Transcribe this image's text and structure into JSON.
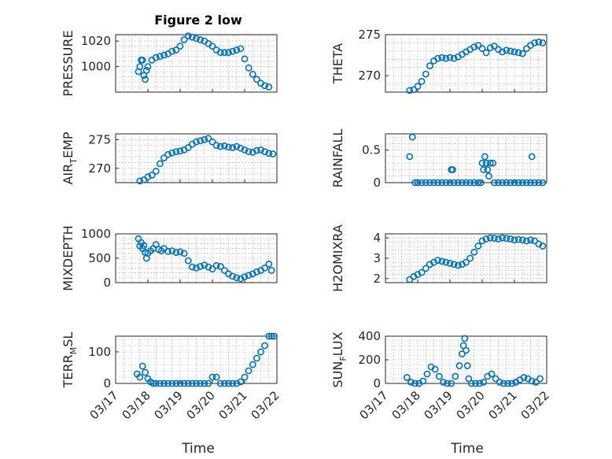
{
  "figure": {
    "title": "Figure 2 low",
    "x_axis_label": "Time"
  },
  "colors": {
    "marker": "#0072BD",
    "axes": "#262626"
  },
  "chart_data": [
    {
      "type": "scatter",
      "id": "pressure",
      "ylabel": "PRESSURE",
      "subscript": "",
      "xlim": [
        "03/17",
        "03/22"
      ],
      "ylim": [
        980,
        1025
      ],
      "yticks": [
        1000,
        1020
      ],
      "grid": true,
      "marker": "circle",
      "show_xticklabels": false,
      "x": [
        "03/17 17:00",
        "03/17 18:00",
        "03/17 19:00",
        "03/17 20:00",
        "03/17 21:00",
        "03/17 22:00",
        "03/17 23:00",
        "03/18 00:00",
        "03/18 03:00",
        "03/18 06:00",
        "03/18 09:00",
        "03/18 12:00",
        "03/18 15:00",
        "03/18 18:00",
        "03/18 21:00",
        "03/19 00:00",
        "03/19 03:00",
        "03/19 06:00",
        "03/19 09:00",
        "03/19 12:00",
        "03/19 15:00",
        "03/19 18:00",
        "03/19 21:00",
        "03/20 00:00",
        "03/20 03:00",
        "03/20 06:00",
        "03/20 09:00",
        "03/20 12:00",
        "03/20 15:00",
        "03/20 18:00",
        "03/20 21:00",
        "03/21 00:00",
        "03/21 03:00",
        "03/21 06:00",
        "03/21 09:00",
        "03/21 12:00",
        "03/21 15:00",
        "03/21 18:00"
      ],
      "y": [
        996,
        1000,
        1005,
        1005,
        993,
        990,
        997,
        1000,
        1005,
        1007,
        1008,
        1009,
        1010,
        1012,
        1013,
        1016,
        1021,
        1024,
        1023,
        1022,
        1021,
        1020,
        1018,
        1016,
        1013,
        1011,
        1011,
        1011,
        1012,
        1013,
        1014,
        1006,
        999,
        994,
        990,
        987,
        985,
        984
      ]
    },
    {
      "type": "scatter",
      "id": "theta",
      "ylabel": "THETA",
      "subscript": "",
      "xlim": [
        "03/17",
        "03/22"
      ],
      "ylim": [
        268,
        275
      ],
      "yticks": [
        270,
        275
      ],
      "grid": true,
      "marker": "circle",
      "show_xticklabels": false,
      "x": [
        "03/17 18:00",
        "03/17 21:00",
        "03/18 00:00",
        "03/18 03:00",
        "03/18 06:00",
        "03/18 09:00",
        "03/18 12:00",
        "03/18 15:00",
        "03/18 18:00",
        "03/18 21:00",
        "03/19 00:00",
        "03/19 03:00",
        "03/19 06:00",
        "03/19 09:00",
        "03/19 12:00",
        "03/19 15:00",
        "03/19 18:00",
        "03/19 21:00",
        "03/20 00:00",
        "03/20 03:00",
        "03/20 06:00",
        "03/20 09:00",
        "03/20 12:00",
        "03/20 15:00",
        "03/20 18:00",
        "03/20 21:00",
        "03/21 00:00",
        "03/21 03:00",
        "03/21 06:00",
        "03/21 09:00",
        "03/21 12:00",
        "03/21 15:00",
        "03/21 18:00",
        "03/21 21:00"
      ],
      "y": [
        268.2,
        268.3,
        268.7,
        269.3,
        270.2,
        271.2,
        271.8,
        272.1,
        272.2,
        272.1,
        272.2,
        272.1,
        272.3,
        272.6,
        272.9,
        273.2,
        273.5,
        273.7,
        273.3,
        272.8,
        273.4,
        273.6,
        273.2,
        272.9,
        273.1,
        273.0,
        272.9,
        272.8,
        272.7,
        273.3,
        273.7,
        274.0,
        274.1,
        274.0
      ]
    },
    {
      "type": "scatter",
      "id": "air-temp",
      "ylabel": "AIR",
      "subscript": "T",
      "ylabel_tail": "EMP",
      "xlim": [
        "03/17",
        "03/22"
      ],
      "ylim": [
        267.5,
        276
      ],
      "yticks": [
        270,
        275
      ],
      "grid": true,
      "marker": "circle",
      "show_xticklabels": false,
      "x": [
        "03/17 18:00",
        "03/17 21:00",
        "03/18 00:00",
        "03/18 03:00",
        "03/18 06:00",
        "03/18 09:00",
        "03/18 12:00",
        "03/18 15:00",
        "03/18 18:00",
        "03/18 21:00",
        "03/19 00:00",
        "03/19 03:00",
        "03/19 06:00",
        "03/19 09:00",
        "03/19 12:00",
        "03/19 15:00",
        "03/19 18:00",
        "03/19 21:00",
        "03/20 00:00",
        "03/20 03:00",
        "03/20 06:00",
        "03/20 09:00",
        "03/20 12:00",
        "03/20 15:00",
        "03/20 18:00",
        "03/20 21:00",
        "03/21 00:00",
        "03/21 03:00",
        "03/21 06:00",
        "03/21 09:00",
        "03/21 12:00",
        "03/21 15:00",
        "03/21 18:00",
        "03/21 21:00"
      ],
      "y": [
        267.8,
        268.0,
        268.5,
        268.8,
        269.5,
        270.8,
        271.8,
        272.4,
        272.7,
        272.9,
        273.0,
        273.2,
        273.6,
        274.2,
        274.6,
        274.8,
        275.0,
        275.2,
        274.6,
        274.0,
        273.8,
        273.9,
        273.7,
        273.6,
        273.8,
        273.5,
        273.2,
        272.9,
        272.8,
        273.1,
        273.2,
        272.9,
        272.6,
        272.5
      ]
    },
    {
      "type": "scatter",
      "id": "rainfall",
      "ylabel": "RAINFALL",
      "subscript": "",
      "xlim": [
        "03/17",
        "03/22"
      ],
      "ylim": [
        0,
        0.75
      ],
      "yticks": [
        0,
        0.5
      ],
      "grid": true,
      "marker": "circle",
      "show_xticklabels": false,
      "x": [
        "03/17 18:00",
        "03/17 20:00",
        "03/17 22:00",
        "03/18 00:00",
        "03/18 03:00",
        "03/18 06:00",
        "03/18 09:00",
        "03/18 12:00",
        "03/18 15:00",
        "03/18 18:00",
        "03/18 21:00",
        "03/19 00:00",
        "03/19 01:00",
        "03/19 02:00",
        "03/19 03:00",
        "03/19 06:00",
        "03/19 09:00",
        "03/19 12:00",
        "03/19 15:00",
        "03/19 18:00",
        "03/19 21:00",
        "03/19 23:00",
        "03/20 00:00",
        "03/20 01:00",
        "03/20 02:00",
        "03/20 03:00",
        "03/20 04:00",
        "03/20 05:00",
        "03/20 06:00",
        "03/20 08:00",
        "03/20 09:00",
        "03/20 12:00",
        "03/20 15:00",
        "03/20 18:00",
        "03/20 21:00",
        "03/21 00:00",
        "03/21 03:00",
        "03/21 06:00",
        "03/21 09:00",
        "03/21 12:00",
        "03/21 13:00",
        "03/21 15:00",
        "03/21 18:00",
        "03/21 21:00"
      ],
      "y": [
        0.4,
        0.7,
        0,
        0,
        0,
        0,
        0,
        0,
        0,
        0,
        0,
        0,
        0.2,
        0.2,
        0,
        0,
        0,
        0,
        0,
        0,
        0,
        0,
        0.3,
        0.2,
        0.4,
        0.3,
        0.2,
        0.1,
        0.3,
        0.3,
        0,
        0,
        0,
        0,
        0,
        0,
        0,
        0,
        0,
        0,
        0.4,
        0,
        0,
        0
      ]
    },
    {
      "type": "scatter",
      "id": "mixdepth",
      "ylabel": "MIXDEPTH",
      "subscript": "",
      "xlim": [
        "03/17",
        "03/22"
      ],
      "ylim": [
        0,
        1000
      ],
      "yticks": [
        0,
        500,
        1000
      ],
      "grid": true,
      "marker": "circle",
      "show_xticklabels": false,
      "x": [
        "03/17 17:00",
        "03/17 18:00",
        "03/17 19:00",
        "03/17 20:00",
        "03/17 21:00",
        "03/17 22:00",
        "03/17 23:00",
        "03/18 00:00",
        "03/18 02:00",
        "03/18 04:00",
        "03/18 06:00",
        "03/18 08:00",
        "03/18 10:00",
        "03/18 12:00",
        "03/18 15:00",
        "03/18 18:00",
        "03/18 21:00",
        "03/19 00:00",
        "03/19 03:00",
        "03/19 06:00",
        "03/19 09:00",
        "03/19 12:00",
        "03/19 15:00",
        "03/19 18:00",
        "03/19 21:00",
        "03/20 00:00",
        "03/20 03:00",
        "03/20 06:00",
        "03/20 09:00",
        "03/20 12:00",
        "03/20 15:00",
        "03/20 18:00",
        "03/20 21:00",
        "03/21 00:00",
        "03/21 03:00",
        "03/21 06:00",
        "03/21 09:00",
        "03/21 12:00",
        "03/21 15:00",
        "03/21 18:00",
        "03/21 20:00"
      ],
      "y": [
        900,
        750,
        820,
        700,
        760,
        620,
        500,
        600,
        650,
        700,
        780,
        680,
        650,
        700,
        640,
        650,
        620,
        630,
        600,
        450,
        320,
        300,
        330,
        360,
        320,
        280,
        350,
        330,
        250,
        180,
        130,
        100,
        80,
        120,
        150,
        180,
        220,
        250,
        300,
        380,
        250
      ]
    },
    {
      "type": "scatter",
      "id": "h2o-mixing-ratio",
      "ylabel": "H2OMIXRA",
      "subscript": "",
      "xlim": [
        "03/17",
        "03/22"
      ],
      "ylim": [
        1.8,
        4.2
      ],
      "yticks": [
        2,
        3,
        4
      ],
      "grid": true,
      "marker": "circle",
      "show_xticklabels": false,
      "x": [
        "03/17 18:00",
        "03/17 21:00",
        "03/18 00:00",
        "03/18 03:00",
        "03/18 06:00",
        "03/18 09:00",
        "03/18 12:00",
        "03/18 15:00",
        "03/18 18:00",
        "03/18 21:00",
        "03/19 00:00",
        "03/19 03:00",
        "03/19 06:00",
        "03/19 09:00",
        "03/19 12:00",
        "03/19 15:00",
        "03/19 18:00",
        "03/19 21:00",
        "03/20 00:00",
        "03/20 03:00",
        "03/20 06:00",
        "03/20 09:00",
        "03/20 12:00",
        "03/20 15:00",
        "03/20 18:00",
        "03/20 21:00",
        "03/21 00:00",
        "03/21 03:00",
        "03/21 06:00",
        "03/21 09:00",
        "03/21 12:00",
        "03/21 15:00",
        "03/21 18:00",
        "03/21 21:00"
      ],
      "y": [
        1.95,
        2.1,
        2.2,
        2.3,
        2.5,
        2.7,
        2.8,
        2.9,
        2.85,
        2.8,
        2.75,
        2.7,
        2.65,
        2.7,
        2.8,
        3.0,
        3.3,
        3.6,
        3.85,
        3.95,
        4.0,
        3.98,
        3.95,
        4.0,
        3.97,
        3.95,
        3.9,
        3.92,
        3.9,
        3.85,
        3.9,
        3.85,
        3.7,
        3.6
      ]
    },
    {
      "type": "scatter",
      "id": "terrain-msl",
      "ylabel": "TERR",
      "subscript": "M",
      "ylabel_tail": "SL",
      "xlim": [
        "03/17",
        "03/22"
      ],
      "ylim": [
        0,
        150
      ],
      "yticks": [
        0,
        100
      ],
      "grid": true,
      "marker": "circle",
      "show_xticklabels": true,
      "xticks": [
        "03/17",
        "03/18",
        "03/19",
        "03/20",
        "03/21",
        "03/22"
      ],
      "x": [
        "03/17 16:00",
        "03/17 18:00",
        "03/17 20:00",
        "03/17 22:00",
        "03/18 00:00",
        "03/18 02:00",
        "03/18 04:00",
        "03/18 06:00",
        "03/18 09:00",
        "03/18 12:00",
        "03/18 15:00",
        "03/18 18:00",
        "03/18 21:00",
        "03/19 00:00",
        "03/19 03:00",
        "03/19 06:00",
        "03/19 09:00",
        "03/19 12:00",
        "03/19 15:00",
        "03/19 18:00",
        "03/19 21:00",
        "03/20 00:00",
        "03/20 03:00",
        "03/20 06:00",
        "03/20 09:00",
        "03/20 12:00",
        "03/20 15:00",
        "03/20 18:00",
        "03/20 21:00",
        "03/21 00:00",
        "03/21 03:00",
        "03/21 06:00",
        "03/21 09:00",
        "03/21 12:00",
        "03/21 15:00",
        "03/21 18:00",
        "03/21 20:00",
        "03/21 22:00"
      ],
      "y": [
        30,
        20,
        55,
        35,
        15,
        5,
        0,
        0,
        0,
        0,
        0,
        0,
        0,
        0,
        0,
        0,
        0,
        0,
        0,
        0,
        0,
        20,
        20,
        0,
        0,
        0,
        0,
        0,
        5,
        20,
        40,
        60,
        80,
        100,
        120,
        150,
        150,
        150
      ]
    },
    {
      "type": "scatter",
      "id": "sun-flux",
      "ylabel": "SUN",
      "subscript": "F",
      "ylabel_tail": "LUX",
      "xlim": [
        "03/17",
        "03/22"
      ],
      "ylim": [
        0,
        400
      ],
      "yticks": [
        0,
        200,
        400
      ],
      "grid": true,
      "marker": "circle",
      "show_xticklabels": true,
      "xticks": [
        "03/17",
        "03/18",
        "03/19",
        "03/20",
        "03/21",
        "03/22"
      ],
      "x": [
        "03/17 16:00",
        "03/17 19:00",
        "03/17 22:00",
        "03/18 01:00",
        "03/18 04:00",
        "03/18 07:00",
        "03/18 10:00",
        "03/18 13:00",
        "03/18 16:00",
        "03/18 19:00",
        "03/18 22:00",
        "03/19 01:00",
        "03/19 04:00",
        "03/19 07:00",
        "03/19 09:00",
        "03/19 10:00",
        "03/19 11:00",
        "03/19 12:00",
        "03/19 13:00",
        "03/19 14:00",
        "03/19 16:00",
        "03/19 19:00",
        "03/19 22:00",
        "03/20 01:00",
        "03/20 04:00",
        "03/20 07:00",
        "03/20 10:00",
        "03/20 13:00",
        "03/20 16:00",
        "03/20 19:00",
        "03/20 22:00",
        "03/21 01:00",
        "03/21 04:00",
        "03/21 07:00",
        "03/21 10:00",
        "03/21 13:00",
        "03/21 16:00",
        "03/21 19:00"
      ],
      "y": [
        50,
        10,
        0,
        0,
        20,
        80,
        140,
        120,
        60,
        10,
        0,
        0,
        60,
        150,
        250,
        320,
        380,
        280,
        150,
        40,
        0,
        0,
        0,
        10,
        60,
        80,
        40,
        10,
        0,
        0,
        0,
        10,
        30,
        50,
        40,
        20,
        10,
        40
      ]
    }
  ]
}
